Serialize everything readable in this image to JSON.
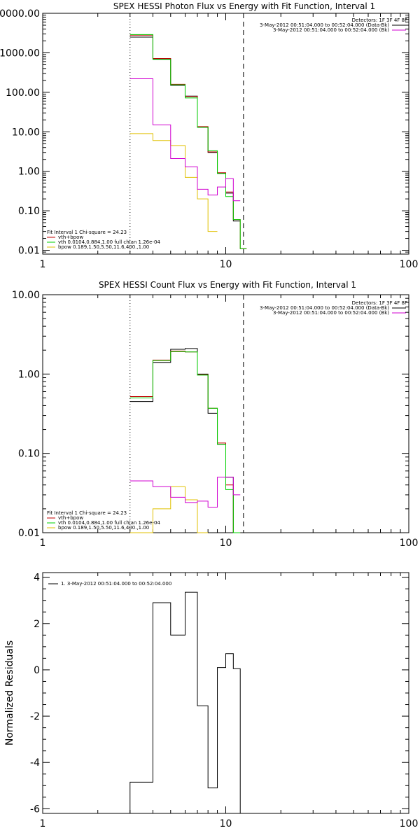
{
  "colors": {
    "data": "#000000",
    "vth_bpow": "#c00000",
    "vth": "#00d000",
    "bpow": "#e0c000",
    "bk": "#d000d0",
    "line": "#000000"
  },
  "chart_data": [
    {
      "id": "photon",
      "type": "line",
      "title": "SPEX HESSI Photon Flux vs Energy with Fit Function, Interval 1",
      "xscale": "log",
      "yscale": "log",
      "xlim": [
        1,
        100
      ],
      "ylim": [
        0.008,
        10000
      ],
      "xticks": [
        1,
        10,
        100
      ],
      "xticklabels": [
        "1",
        "10",
        "100"
      ],
      "yticks": [
        0.01,
        0.1,
        1,
        10,
        100,
        1000,
        10000
      ],
      "yticklabels": [
        "0.01",
        "0.10",
        "1.00",
        "10.00",
        "100.00",
        "1000.00",
        "10000.00"
      ],
      "vlines": [
        {
          "x": 3,
          "style": "dotted"
        },
        {
          "x": 12.5,
          "style": "dashed"
        }
      ],
      "detectors": "Detectors: 1F 3F 4F 8F",
      "legend_tr": [
        {
          "label": "3-May-2012 00:51:04.000 to 00:52:04.000 (Data-Bk)",
          "color": "data"
        },
        {
          "label": "3-May-2012 00:51:04.000 to 00:52:04.000 (Bk)",
          "color": "bk"
        }
      ],
      "fit_header": "Fit Interval  1    Chi-square = 24.23",
      "legend_bl": [
        {
          "label": "vth+bpow",
          "color": "vth_bpow"
        },
        {
          "label": "vth 0.0104,0.884,1.00  full chian 1.26e-04",
          "color": "vth"
        },
        {
          "label": "bpow 0.189,1.50,5.50,11.6,400.,1.00",
          "color": "bpow"
        }
      ],
      "edges": [
        3,
        4,
        5,
        6,
        7,
        8,
        9,
        10,
        11,
        12,
        13
      ],
      "series": [
        {
          "name": "Data-Bk",
          "color": "data",
          "edges": [
            3,
            4,
            5,
            6,
            7,
            8,
            9,
            10,
            11,
            12
          ],
          "values": [
            2500,
            700,
            150,
            80,
            13,
            3,
            0.9,
            0.28,
            0.055
          ]
        },
        {
          "name": "vth+bpow",
          "color": "vth_bpow",
          "edges": [
            3,
            4,
            5,
            6,
            7,
            8,
            9,
            10,
            11,
            12,
            13
          ],
          "values": [
            2800,
            720,
            160,
            78,
            13.5,
            3.1,
            0.92,
            0.3,
            0.06,
            0.011
          ]
        },
        {
          "name": "vth",
          "color": "vth",
          "edges": [
            3,
            4,
            5,
            6,
            7,
            8,
            9,
            10,
            11,
            12,
            13
          ],
          "values": [
            2900,
            680,
            155,
            72,
            13,
            3.3,
            0.88,
            0.23,
            0.06,
            0.011
          ]
        },
        {
          "name": "bpow",
          "color": "bpow",
          "edges": [
            3,
            4,
            5,
            6,
            7,
            8,
            9
          ],
          "values": [
            9,
            6,
            4.5,
            0.7,
            0.2,
            0.03
          ]
        },
        {
          "name": "Bk",
          "color": "bk",
          "edges": [
            3,
            4,
            5,
            6,
            7,
            8,
            9,
            10,
            11,
            12
          ],
          "values": [
            220,
            15,
            2.1,
            1.3,
            0.35,
            0.25,
            0.4,
            0.65,
            0.18
          ]
        }
      ]
    },
    {
      "id": "count",
      "type": "line",
      "title": "SPEX HESSI Count Flux vs Energy with Fit Function, Interval 1",
      "xscale": "log",
      "yscale": "log",
      "xlim": [
        1,
        100
      ],
      "ylim": [
        0.01,
        10
      ],
      "xticks": [
        1,
        10,
        100
      ],
      "xticklabels": [
        "1",
        "10",
        "100"
      ],
      "yticks": [
        0.01,
        0.1,
        1,
        10
      ],
      "yticklabels": [
        "0.01",
        "0.10",
        "1.00",
        "10.00"
      ],
      "vlines": [
        {
          "x": 3,
          "style": "dotted"
        },
        {
          "x": 12.5,
          "style": "dashed"
        }
      ],
      "detectors": "Detectors: 1F 3F 4F 8F",
      "legend_tr": [
        {
          "label": "3-May-2012 00:51:04.000 to 00:52:04.000 (Data-Bk)",
          "color": "data"
        },
        {
          "label": "3-May-2012 00:51:04.000 to 00:52:04.000 (Bk)",
          "color": "bk"
        }
      ],
      "fit_header": "Fit Interval  1    Chi-square = 24.23",
      "legend_bl": [
        {
          "label": "vth+bpow",
          "color": "vth_bpow"
        },
        {
          "label": "vth 0.0104,0.884,1.00  full chian 1.26e-04",
          "color": "vth"
        },
        {
          "label": "bpow 0.189,1.50,5.50,11.6,400.,1.00",
          "color": "bpow"
        }
      ],
      "edges": [
        3,
        4,
        5,
        6,
        7,
        8,
        9,
        10,
        11,
        12
      ],
      "series": [
        {
          "name": "Data-Bk",
          "color": "data",
          "edges": [
            3,
            4,
            5,
            6,
            7,
            8,
            9,
            10,
            11,
            12
          ],
          "values": [
            0.45,
            1.4,
            2.05,
            2.1,
            1.0,
            0.32,
            0.13,
            0.05,
            0.01
          ]
        },
        {
          "name": "vth+bpow",
          "color": "vth_bpow",
          "edges": [
            3,
            4,
            5,
            6,
            7,
            8,
            9,
            10,
            11,
            12
          ],
          "values": [
            0.52,
            1.5,
            1.95,
            1.9,
            0.98,
            0.37,
            0.135,
            0.04,
            0.01
          ]
        },
        {
          "name": "vth",
          "color": "vth",
          "edges": [
            3,
            4,
            5,
            6,
            7,
            8,
            9,
            10,
            11,
            12
          ],
          "values": [
            0.5,
            1.48,
            1.92,
            1.9,
            0.97,
            0.37,
            0.13,
            0.035,
            0.01
          ]
        },
        {
          "name": "bpow",
          "color": "bpow",
          "edges": [
            3,
            4,
            5,
            6,
            7,
            8
          ],
          "values": [
            0.01,
            0.02,
            0.038,
            0.026,
            0.01
          ]
        },
        {
          "name": "Bk",
          "color": "bk",
          "edges": [
            3,
            4,
            5,
            6,
            7,
            8,
            9,
            10,
            11,
            12
          ],
          "values": [
            0.045,
            0.038,
            0.028,
            0.024,
            0.025,
            0.021,
            0.05,
            0.05,
            0.03
          ]
        }
      ]
    },
    {
      "id": "resid",
      "type": "line",
      "title": "",
      "ylabel": "Normalized Residuals",
      "xscale": "log",
      "yscale": "linear",
      "xlim": [
        1,
        100
      ],
      "ylim": [
        -6.2,
        4.2
      ],
      "xticks": [
        1,
        10,
        100
      ],
      "xticklabels": [
        "1",
        "10",
        "100"
      ],
      "yticks": [
        -6,
        -4,
        -2,
        0,
        2,
        4
      ],
      "yticklabels": [
        "-6",
        "-4",
        "-2",
        "0",
        "2",
        "4"
      ],
      "vlines": [],
      "legend_tl": [
        {
          "label": "1.  3-May-2012 00:51:04.000 to 00:52:04.000",
          "color": "line"
        }
      ],
      "series": [
        {
          "name": "residuals",
          "color": "line",
          "edges": [
            3,
            4,
            5,
            6,
            7,
            8,
            9,
            10,
            11,
            12
          ],
          "values": [
            -4.85,
            2.9,
            1.5,
            3.35,
            -1.55,
            -5.1,
            0.1,
            0.7,
            0.05
          ],
          "drop_to": -6.2
        }
      ]
    }
  ]
}
